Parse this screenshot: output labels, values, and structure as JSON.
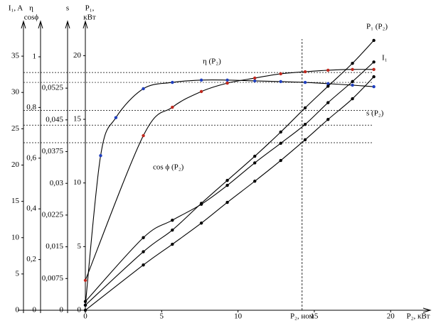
{
  "chart_data": {
    "type": "line",
    "xlabel": "P₂, кВт",
    "xlim": [
      0,
      22.6
    ],
    "xticks": [
      0,
      5,
      10,
      15,
      20
    ],
    "axes": [
      {
        "label": [
          "I₁, A"
        ],
        "lim": [
          0,
          39.8
        ],
        "ticks": [
          0,
          5,
          10,
          15,
          20,
          25,
          30,
          35
        ]
      },
      {
        "label": [
          "η",
          "cosϕ"
        ],
        "lim": [
          0,
          1.14
        ],
        "ticks": [
          0,
          {
            "value": 0.2,
            "label": "0,2"
          },
          {
            "value": 0.4,
            "label": "0,4"
          },
          {
            "value": 0.6,
            "label": "0,6"
          },
          {
            "value": 0.8,
            "label": "0,8"
          },
          1
        ]
      },
      {
        "label": [
          "s"
        ],
        "lim": [
          0,
          0.0683
        ],
        "ticks": [
          0,
          {
            "value": 0.0075,
            "label": "0,0075"
          },
          {
            "value": 0.015,
            "label": "0,015"
          },
          {
            "value": 0.0225,
            "label": "0,0225"
          },
          {
            "value": 0.03,
            "label": "0,03"
          },
          {
            "value": 0.0375,
            "label": "0,0375"
          },
          {
            "value": 0.045,
            "label": "0,045"
          },
          {
            "value": 0.0525,
            "label": "0,0525"
          }
        ]
      },
      {
        "label": [
          "P₁,",
          "кВт"
        ],
        "lim": [
          0,
          22.7
        ],
        "ticks": [
          0,
          5,
          10,
          15,
          20
        ]
      }
    ],
    "series": [
      {
        "name": "η (P₂)",
        "axis": 1,
        "color": "#000000",
        "marker_color": "#1f3fbf",
        "x": [
          0,
          1,
          2,
          3.8,
          5.7,
          7.6,
          9.3,
          11.1,
          12.8,
          14.4,
          15.9,
          17.5,
          18.9
        ],
        "values": [
          0.02,
          0.61,
          0.76,
          0.874,
          0.899,
          0.908,
          0.908,
          0.905,
          0.902,
          0.899,
          0.894,
          0.888,
          0.882
        ]
      },
      {
        "name": "cos ϕ (P₂)",
        "axis": 1,
        "color": "#000000",
        "marker_color": "#c0281e",
        "x": [
          0,
          3.8,
          5.7,
          7.6,
          9.3,
          11.1,
          12.8,
          14.4,
          15.9,
          17.5,
          18.9
        ],
        "values": [
          0.118,
          0.689,
          0.801,
          0.863,
          0.896,
          0.916,
          0.933,
          0.941,
          0.947,
          0.95,
          0.95
        ]
      },
      {
        "name": "P₁ (P₂)",
        "axis": 3,
        "color": "#000000",
        "marker_color": "#000000",
        "x": [
          0,
          3.8,
          5.7,
          7.6,
          9.3,
          11.1,
          12.8,
          14.4,
          15.9,
          17.5,
          18.9
        ],
        "values": [
          0.4,
          4.6,
          6.3,
          8.4,
          10.2,
          12.1,
          14.0,
          15.9,
          17.6,
          19.4,
          21.2
        ]
      },
      {
        "name": "I₁",
        "axis": 0,
        "color": "#000000",
        "marker_color": "#000000",
        "x": [
          0,
          3.8,
          5.7,
          7.6,
          9.3,
          11.1,
          12.8,
          14.4,
          15.9,
          17.5,
          18.9
        ],
        "values": [
          1.2,
          10.0,
          12.4,
          14.6,
          17.2,
          20.3,
          23.0,
          25.6,
          28.6,
          31.5,
          34.2
        ]
      },
      {
        "name": "s (P₂)",
        "axis": 2,
        "color": "#000000",
        "marker_color": "#000000",
        "x": [
          0,
          3.8,
          5.7,
          7.6,
          9.3,
          11.1,
          12.8,
          14.4,
          15.9,
          17.5,
          18.9
        ],
        "values": [
          0,
          0.0107,
          0.0156,
          0.0206,
          0.0255,
          0.0305,
          0.0354,
          0.0403,
          0.0451,
          0.05,
          0.0552
        ]
      }
    ],
    "nominal": {
      "value": 14.2,
      "label": "P₂, ном"
    },
    "hlines": [
      {
        "axis": 1,
        "value": 0.938
      },
      {
        "axis": 1,
        "value": 0.899
      },
      {
        "axis": 3,
        "value": 15.7
      },
      {
        "axis": 0,
        "value": 25.5
      },
      {
        "axis": 2,
        "value": 0.0396
      }
    ]
  }
}
